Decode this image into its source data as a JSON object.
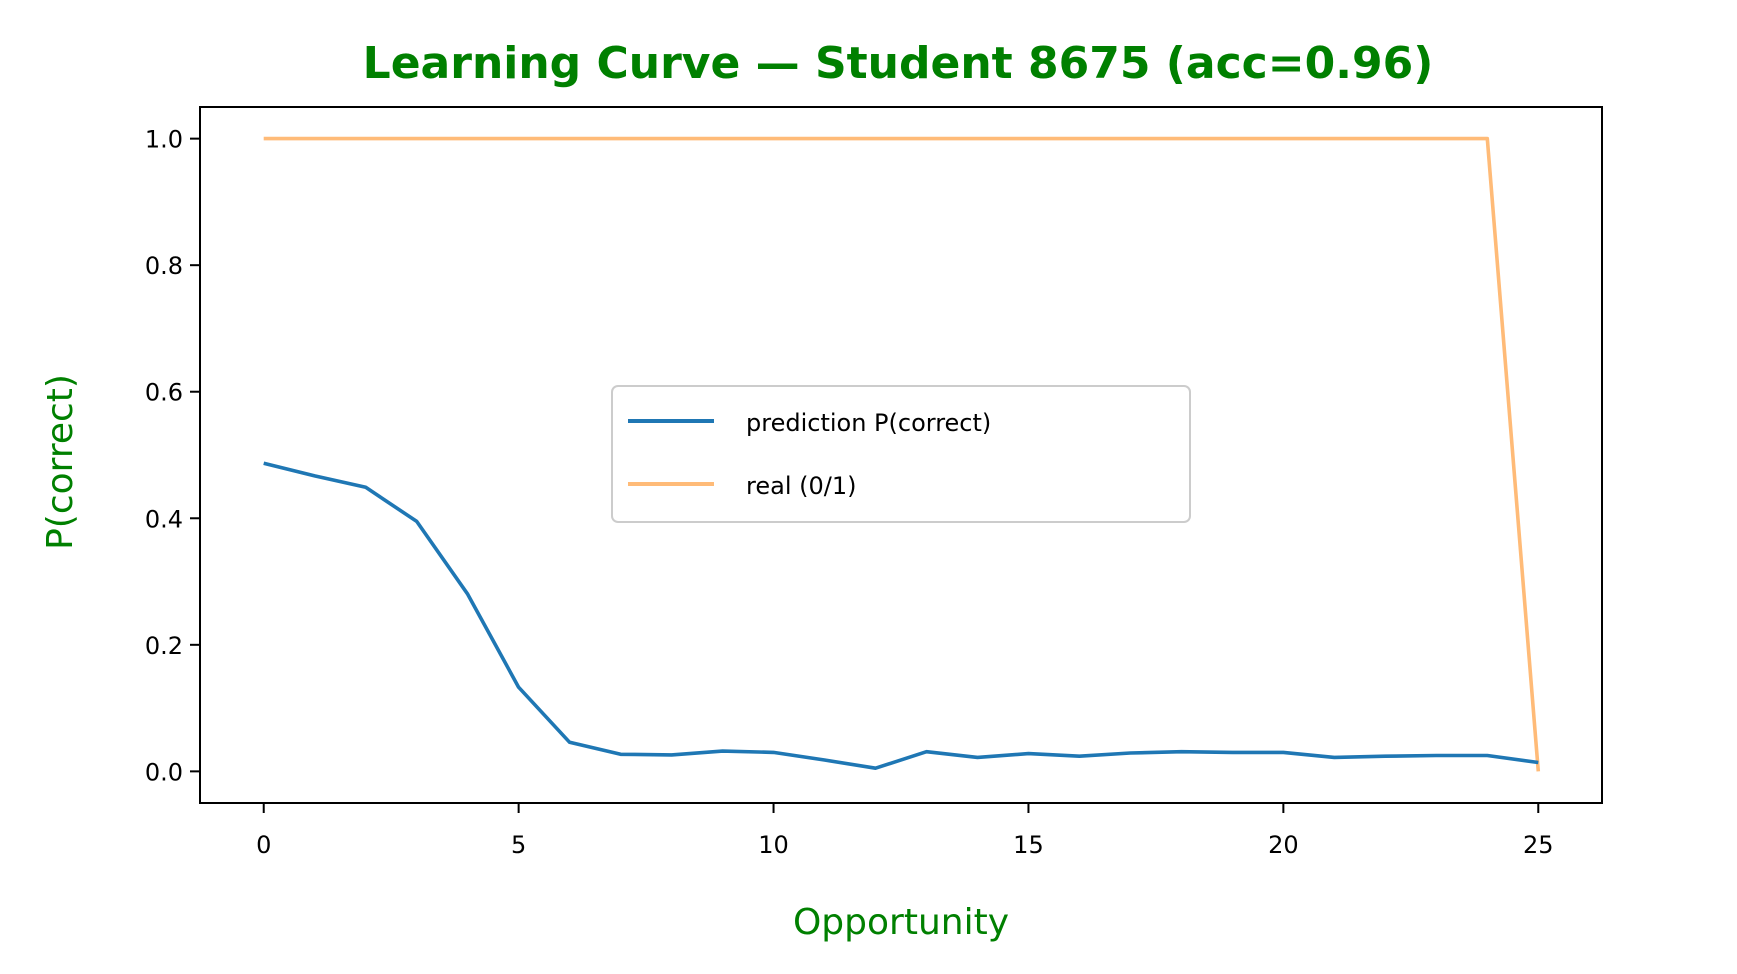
{
  "chart_data": {
    "type": "line",
    "title": "Learning Curve — Student 8675 (acc=0.96)",
    "xlabel": "Opportunity",
    "ylabel": "P(correct)",
    "xlim": [
      -1.25,
      26.25
    ],
    "ylim": [
      -0.05,
      1.05
    ],
    "x_ticks": [
      0,
      5,
      10,
      15,
      20,
      25
    ],
    "x_tick_labels": [
      "0",
      "5",
      "10",
      "15",
      "20",
      "25"
    ],
    "y_ticks": [
      0.0,
      0.2,
      0.4,
      0.6,
      0.8,
      1.0
    ],
    "y_tick_labels": [
      "0.0",
      "0.2",
      "0.4",
      "0.6",
      "0.8",
      "1.0"
    ],
    "grid": false,
    "legend_position": "center",
    "x": [
      0,
      1,
      2,
      3,
      4,
      5,
      6,
      7,
      8,
      9,
      10,
      11,
      12,
      13,
      14,
      15,
      16,
      17,
      18,
      19,
      20,
      21,
      22,
      23,
      24,
      25
    ],
    "series": [
      {
        "name": "prediction P(correct)",
        "color": "#1f77b4",
        "values": [
          0.487,
          0.467,
          0.449,
          0.395,
          0.28,
          0.133,
          0.046,
          0.027,
          0.026,
          0.032,
          0.03,
          0.018,
          0.005,
          0.031,
          0.022,
          0.028,
          0.024,
          0.029,
          0.031,
          0.03,
          0.03,
          0.022,
          0.024,
          0.025,
          0.025,
          0.014
        ]
      },
      {
        "name": "real (0/1)",
        "color": "#ffbb78",
        "values": [
          1,
          1,
          1,
          1,
          1,
          1,
          1,
          1,
          1,
          1,
          1,
          1,
          1,
          1,
          1,
          1,
          1,
          1,
          1,
          1,
          1,
          1,
          1,
          1,
          1,
          0
        ]
      }
    ],
    "colors": {
      "title": "#008000",
      "axis_label": "#008000"
    }
  }
}
